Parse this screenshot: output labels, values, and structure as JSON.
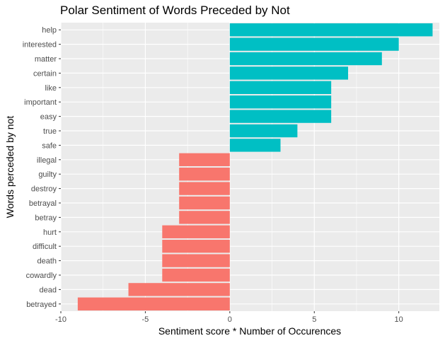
{
  "chart_data": {
    "type": "bar",
    "orientation": "horizontal",
    "title": "Polar Sentiment of Words Preceded by Not",
    "xlabel": "Sentiment score * Number of Occurences",
    "ylabel": "Words perceded by not",
    "xlim": [
      -10,
      12.4
    ],
    "xticks": [
      -10,
      -5,
      0,
      5,
      10
    ],
    "grid": true,
    "legend": "none",
    "colors": {
      "positive": "#00BFC4",
      "negative": "#F8766D",
      "panel": "#EBEBEB",
      "grid": "#FFFFFF"
    },
    "categories": [
      "help",
      "interested",
      "matter",
      "certain",
      "like",
      "important",
      "easy",
      "true",
      "safe",
      "illegal",
      "guilty",
      "destroy",
      "betrayal",
      "betray",
      "hurt",
      "difficult",
      "death",
      "cowardly",
      "dead",
      "betrayed"
    ],
    "values": [
      12,
      10,
      9,
      7,
      6,
      6,
      6,
      4,
      3,
      -3,
      -3,
      -3,
      -3,
      -3,
      -4,
      -4,
      -4,
      -4,
      -6,
      -9
    ]
  }
}
